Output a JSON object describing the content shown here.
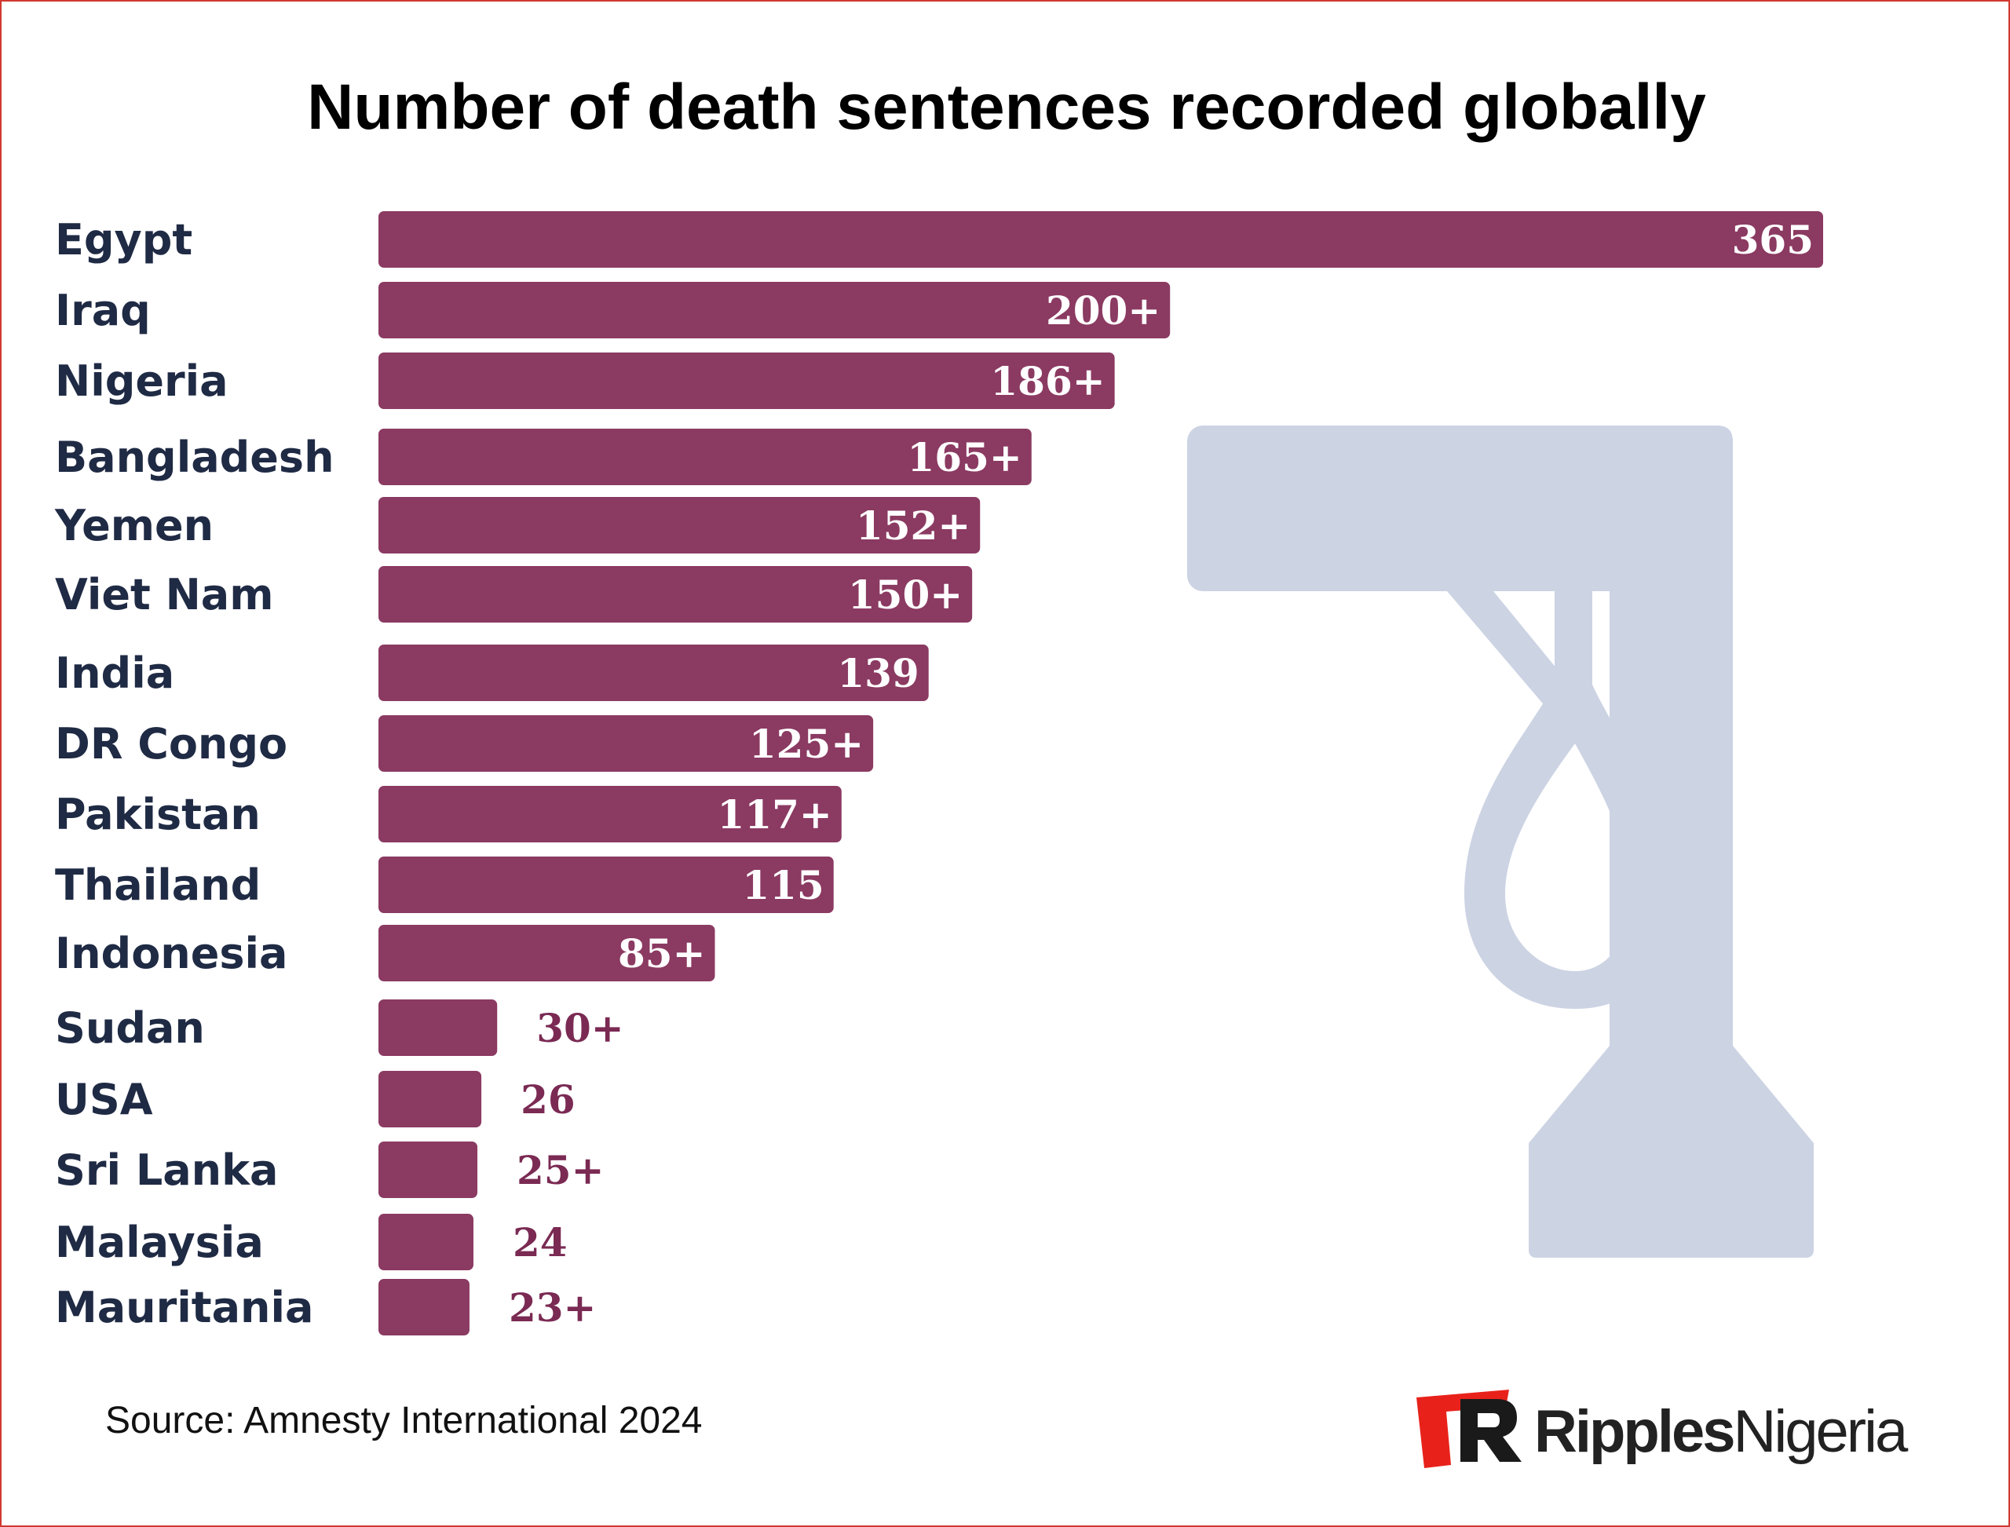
{
  "title": "Number of death sentences recorded globally",
  "source": "Source: Amnesty International 2024",
  "logo": {
    "part1": "Ripples",
    "part2": "Nigeria"
  },
  "colors": {
    "bar": "#8b3a62",
    "inside_label": "#ffffff",
    "outside_label": "#7a2a53",
    "category_label": "#1f2a44",
    "icon": "#ccd3e3",
    "logo_red": "#e8221b"
  },
  "icon": "gallows-noose-icon",
  "chart_data": {
    "type": "bar",
    "orientation": "horizontal",
    "title": "Number of death sentences recorded globally",
    "xlim": [
      0,
      365
    ],
    "grid": false,
    "categories": [
      "Egypt",
      "Iraq",
      "Nigeria",
      "Bangladesh",
      "Yemen",
      "Viet Nam",
      "India",
      "DR Congo",
      "Pakistan",
      "Thailand",
      "Indonesia",
      "Sudan",
      "USA",
      "Sri Lanka",
      "Malaysia",
      "Mauritania"
    ],
    "values": [
      365,
      200,
      186,
      165,
      152,
      150,
      139,
      125,
      117,
      115,
      85,
      30,
      26,
      25,
      24,
      23
    ],
    "value_labels": [
      "365",
      "200+",
      "186+",
      "165+",
      "152+",
      "150+",
      "139",
      "125+",
      "117+",
      "115",
      "85+",
      "30+",
      "26",
      "25+",
      "24",
      "23+"
    ]
  }
}
